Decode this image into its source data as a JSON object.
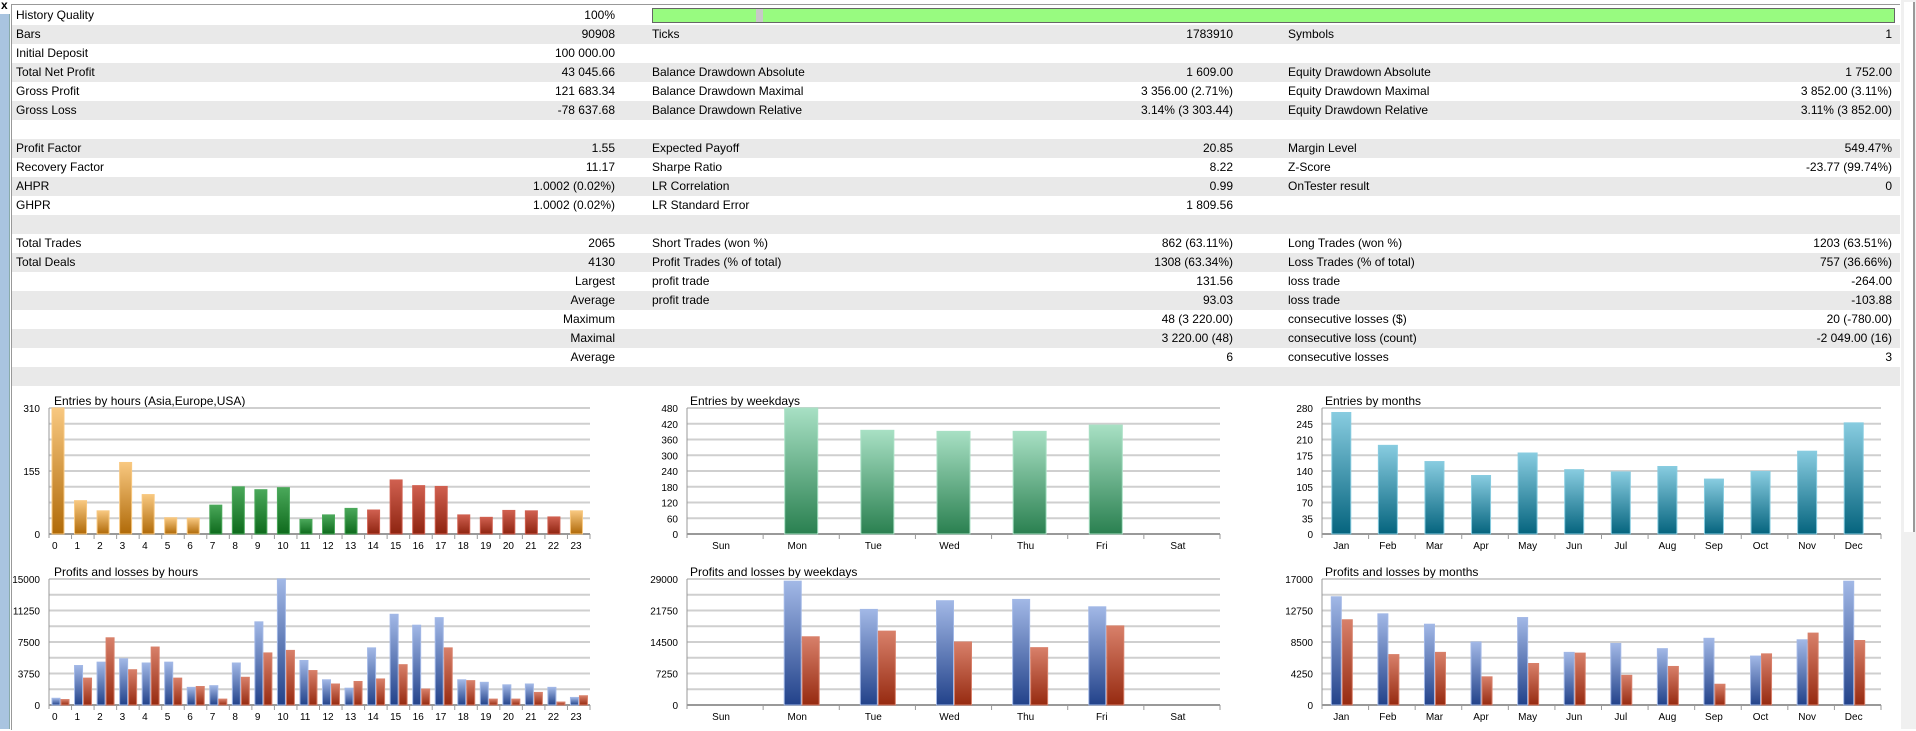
{
  "window": {
    "close_label": "x"
  },
  "stats_rows": [
    {
      "l1": "History Quality",
      "v1": "100%",
      "l2": "",
      "v2": "",
      "l3": "",
      "v3": "",
      "progress": 1.0
    },
    {
      "l1": "Bars",
      "v1": "90908",
      "l2": "Ticks",
      "v2": "1783910",
      "l3": "Symbols",
      "v3": "1"
    },
    {
      "l1": "Initial Deposit",
      "v1": "100 000.00",
      "l2": "",
      "v2": "",
      "l3": "",
      "v3": ""
    },
    {
      "l1": "Total Net Profit",
      "v1": "43 045.66",
      "l2": "Balance Drawdown Absolute",
      "v2": "1 609.00",
      "l3": "Equity Drawdown Absolute",
      "v3": "1 752.00"
    },
    {
      "l1": "Gross Profit",
      "v1": "121 683.34",
      "l2": "Balance Drawdown Maximal",
      "v2": "3 356.00 (2.71%)",
      "l3": "Equity Drawdown Maximal",
      "v3": "3 852.00 (3.11%)"
    },
    {
      "l1": "Gross Loss",
      "v1": "-78 637.68",
      "l2": "Balance Drawdown Relative",
      "v2": "3.14% (3 303.44)",
      "l3": "Equity Drawdown Relative",
      "v3": "3.11% (3 852.00)"
    },
    {
      "l1": "",
      "v1": "",
      "l2": "",
      "v2": "",
      "l3": "",
      "v3": ""
    },
    {
      "l1": "Profit Factor",
      "v1": "1.55",
      "l2": "Expected Payoff",
      "v2": "20.85",
      "l3": "Margin Level",
      "v3": "549.47%"
    },
    {
      "l1": "Recovery Factor",
      "v1": "11.17",
      "l2": "Sharpe Ratio",
      "v2": "8.22",
      "l3": "Z-Score",
      "v3": "-23.77 (99.74%)"
    },
    {
      "l1": "AHPR",
      "v1": "1.0002 (0.02%)",
      "l2": "LR Correlation",
      "v2": "0.99",
      "l3": "OnTester result",
      "v3": "0"
    },
    {
      "l1": "GHPR",
      "v1": "1.0002 (0.02%)",
      "l2": "LR Standard Error",
      "v2": "1 809.56",
      "l3": "",
      "v3": ""
    },
    {
      "l1": "",
      "v1": "",
      "l2": "",
      "v2": "",
      "l3": "",
      "v3": ""
    },
    {
      "l1": "Total Trades",
      "v1": "2065",
      "l2": "Short Trades (won %)",
      "v2": "862 (63.11%)",
      "l3": "Long Trades (won %)",
      "v3": "1203 (63.51%)"
    },
    {
      "l1": "Total Deals",
      "v1": "4130",
      "l2": "Profit Trades (% of total)",
      "v2": "1308 (63.34%)",
      "l3": "Loss Trades (% of total)",
      "v3": "757 (36.66%)"
    },
    {
      "l1": "",
      "v1": "Largest",
      "l2": "profit trade",
      "v2": "131.56",
      "l3": "loss trade",
      "v3": "-264.00"
    },
    {
      "l1": "",
      "v1": "Average",
      "l2": "profit trade",
      "v2": "93.03",
      "l3": "loss trade",
      "v3": "-103.88"
    },
    {
      "l1": "",
      "v1": "Maximum",
      "l2": "",
      "v2": "48 (3 220.00)",
      "l3": "consecutive losses ($)",
      "v3": "20 (-780.00)"
    },
    {
      "l1": "",
      "v1": "Maximal",
      "l2": "",
      "v2": "3 220.00 (48)",
      "l3": "consecutive loss (count)",
      "v3": "-2 049.00 (16)"
    },
    {
      "l1": "",
      "v1": "Average",
      "l2": "",
      "v2": "6",
      "l3": "consecutive losses",
      "v3": "3"
    },
    {
      "l1": "",
      "v1": "",
      "l2": "",
      "v2": "",
      "l3": "",
      "v3": ""
    }
  ],
  "colors": {
    "progress": "#98fb80",
    "asia": [
      "#b06a08",
      "#f8c880"
    ],
    "europe": [
      "#0e6a1c",
      "#4aa85a"
    ],
    "usa": [
      "#8e2410",
      "#d06050"
    ],
    "weekday": [
      "#2a8050",
      "#a8e0c4"
    ],
    "month": [
      "#05647e",
      "#88cce0"
    ],
    "profit": [
      "#22428a",
      "#a2b8e6"
    ],
    "loss": [
      "#962a10",
      "#d8806a"
    ]
  },
  "chart_data": [
    {
      "id": "entries-hours",
      "type": "bar",
      "title": "Entries by hours (Asia,Europe,USA)",
      "categories": [
        "0",
        "1",
        "2",
        "3",
        "4",
        "5",
        "6",
        "7",
        "8",
        "9",
        "10",
        "11",
        "12",
        "13",
        "14",
        "15",
        "16",
        "17",
        "18",
        "19",
        "20",
        "21",
        "22",
        "23"
      ],
      "values": [
        310,
        82,
        57,
        176,
        97,
        40,
        39,
        71,
        116,
        109,
        114,
        36,
        47,
        63,
        59,
        133,
        119,
        117,
        47,
        41,
        58,
        57,
        42,
        57
      ],
      "sessions": [
        "asia",
        "asia",
        "asia",
        "asia",
        "asia",
        "asia",
        "asia",
        "europe",
        "europe",
        "europe",
        "europe",
        "europe",
        "europe",
        "europe",
        "usa",
        "usa",
        "usa",
        "usa",
        "usa",
        "usa",
        "usa",
        "usa",
        "usa",
        "asia"
      ],
      "ylim": [
        0,
        310
      ],
      "yticks": [
        0,
        155,
        310
      ],
      "grid_step": 38.75
    },
    {
      "id": "entries-weekdays",
      "type": "bar",
      "title": "Entries by weekdays",
      "categories": [
        "Sun",
        "Mon",
        "Tue",
        "Wed",
        "Thu",
        "Fri",
        "Sat"
      ],
      "values": [
        0,
        480,
        395,
        391,
        391,
        415,
        0
      ],
      "ylim": [
        0,
        480
      ],
      "yticks": [
        0,
        60,
        120,
        180,
        240,
        300,
        360,
        420,
        480
      ],
      "grid_step": 60
    },
    {
      "id": "entries-months",
      "type": "bar",
      "title": "Entries by months",
      "categories": [
        "Jan",
        "Feb",
        "Mar",
        "Apr",
        "May",
        "Jun",
        "Jul",
        "Aug",
        "Sep",
        "Oct",
        "Nov",
        "Dec"
      ],
      "values": [
        270,
        197,
        161,
        130,
        180,
        143,
        138,
        150,
        122,
        139,
        184,
        247
      ],
      "ylim": [
        0,
        280
      ],
      "yticks": [
        0,
        35,
        70,
        105,
        140,
        175,
        210,
        245,
        280
      ],
      "grid_step": 35
    },
    {
      "id": "pl-hours",
      "type": "bar",
      "title": "Profits and losses by hours",
      "categories": [
        "0",
        "1",
        "2",
        "3",
        "4",
        "5",
        "6",
        "7",
        "8",
        "9",
        "10",
        "11",
        "12",
        "13",
        "14",
        "15",
        "16",
        "17",
        "18",
        "19",
        "20",
        "21",
        "22",
        "23"
      ],
      "series": [
        {
          "name": "Profits",
          "values": [
            800,
            4700,
            5100,
            5500,
            5000,
            5100,
            2100,
            2300,
            5000,
            9900,
            15000,
            5300,
            3000,
            2000,
            6800,
            10800,
            9500,
            10400,
            3000,
            2700,
            2400,
            2500,
            2100,
            900
          ]
        },
        {
          "name": "Losses",
          "values": [
            650,
            3200,
            8000,
            4200,
            6900,
            3200,
            2200,
            700,
            3300,
            6200,
            6500,
            4100,
            2500,
            2800,
            3100,
            4800,
            1900,
            6800,
            2900,
            700,
            700,
            1500,
            350,
            1100
          ]
        }
      ],
      "ylim": [
        0,
        15000
      ],
      "yticks": [
        0,
        3750,
        7500,
        11250,
        15000
      ],
      "grid_step": 1875
    },
    {
      "id": "pl-weekdays",
      "type": "bar",
      "title": "Profits and losses by weekdays",
      "categories": [
        "Sun",
        "Mon",
        "Tue",
        "Wed",
        "Thu",
        "Fri",
        "Sat"
      ],
      "series": [
        {
          "name": "Profits",
          "values": [
            0,
            28500,
            22000,
            24000,
            24300,
            22600,
            0
          ]
        },
        {
          "name": "Losses",
          "values": [
            0,
            15700,
            17000,
            14500,
            13200,
            18200,
            0
          ]
        }
      ],
      "ylim": [
        0,
        29000
      ],
      "yticks": [
        0,
        7250,
        14500,
        21750,
        29000
      ],
      "grid_step": 3625
    },
    {
      "id": "pl-months",
      "type": "bar",
      "title": "Profits and losses by months",
      "categories": [
        "Jan",
        "Feb",
        "Mar",
        "Apr",
        "May",
        "Jun",
        "Jul",
        "Aug",
        "Sep",
        "Oct",
        "Nov",
        "Dec"
      ],
      "series": [
        {
          "name": "Profits",
          "values": [
            14600,
            12300,
            10900,
            8500,
            11800,
            7100,
            8300,
            7600,
            9000,
            6600,
            8800,
            16700
          ]
        },
        {
          "name": "Losses",
          "values": [
            11500,
            6800,
            7100,
            3800,
            5600,
            7000,
            4000,
            5200,
            2800,
            6900,
            9700,
            8700
          ]
        }
      ],
      "ylim": [
        0,
        17000
      ],
      "yticks": [
        0,
        4250,
        8500,
        12750,
        17000
      ],
      "grid_step": 2125
    }
  ]
}
